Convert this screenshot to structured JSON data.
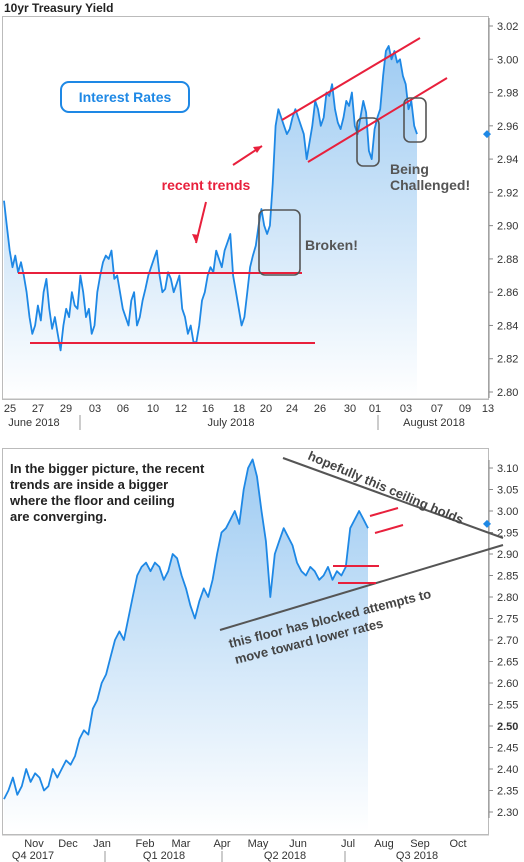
{
  "title": "10yr Treasury Yield",
  "colors": {
    "line": "#1e88e5",
    "fill_top": "#9ecbf2",
    "fill_bottom": "#ffffff",
    "trend_red": "#e8203c",
    "trend_gray": "#555555",
    "annotation_box": "#555555",
    "badge_text": "#1e88e5",
    "badge_border": "#1e88e5",
    "marker": "#1e88e5",
    "grid": "#dddddd",
    "axis_text": "#333333"
  },
  "chart_data": [
    {
      "type": "line",
      "ylim": [
        2.8,
        3.02
      ],
      "y_ticks": [
        "2.80",
        "2.82",
        "2.84",
        "2.86",
        "2.88",
        "2.90",
        "2.92",
        "2.94",
        "2.96",
        "2.98",
        "3.00",
        "3.02"
      ],
      "x_tick_labels": [
        "25",
        "27",
        "29",
        "03",
        "06",
        "10",
        "12",
        "16",
        "18",
        "20",
        "24",
        "26",
        "30",
        "01",
        "03",
        "07",
        "09",
        "13"
      ],
      "period_labels": [
        "June 2018",
        "July 2018",
        "August 2018"
      ],
      "last_value_marker": 2.955,
      "grid": false,
      "badge": "Interest Rates",
      "annotations": [
        "recent trends",
        "Broken!",
        "Being Challenged!"
      ],
      "approx_series": [
        [
          0,
          2.915
        ],
        [
          1,
          2.9
        ],
        [
          2,
          2.885
        ],
        [
          3,
          2.875
        ],
        [
          4,
          2.882
        ],
        [
          5,
          2.872
        ],
        [
          6,
          2.878
        ],
        [
          7,
          2.87
        ],
        [
          8,
          2.86
        ],
        [
          9,
          2.845
        ],
        [
          10,
          2.835
        ],
        [
          11,
          2.84
        ],
        [
          12,
          2.852
        ],
        [
          13,
          2.843
        ],
        [
          14,
          2.86
        ],
        [
          15,
          2.868
        ],
        [
          16,
          2.85
        ],
        [
          17,
          2.838
        ],
        [
          18,
          2.845
        ],
        [
          19,
          2.835
        ],
        [
          20,
          2.825
        ],
        [
          21,
          2.84
        ],
        [
          22,
          2.85
        ],
        [
          23,
          2.845
        ],
        [
          24,
          2.86
        ],
        [
          25,
          2.852
        ],
        [
          26,
          2.85
        ],
        [
          27,
          2.87
        ],
        [
          28,
          2.86
        ],
        [
          29,
          2.845
        ],
        [
          30,
          2.85
        ],
        [
          31,
          2.835
        ],
        [
          32,
          2.84
        ],
        [
          33,
          2.86
        ],
        [
          34,
          2.87
        ],
        [
          35,
          2.878
        ],
        [
          36,
          2.882
        ],
        [
          37,
          2.88
        ],
        [
          38,
          2.885
        ],
        [
          39,
          2.868
        ],
        [
          40,
          2.87
        ],
        [
          41,
          2.86
        ],
        [
          42,
          2.85
        ],
        [
          43,
          2.845
        ],
        [
          44,
          2.84
        ],
        [
          45,
          2.855
        ],
        [
          46,
          2.86
        ],
        [
          47,
          2.84
        ],
        [
          48,
          2.845
        ],
        [
          49,
          2.855
        ],
        [
          50,
          2.862
        ],
        [
          51,
          2.87
        ],
        [
          52,
          2.875
        ],
        [
          53,
          2.88
        ],
        [
          54,
          2.885
        ],
        [
          55,
          2.87
        ],
        [
          56,
          2.86
        ],
        [
          57,
          2.862
        ],
        [
          58,
          2.872
        ],
        [
          59,
          2.868
        ],
        [
          60,
          2.86
        ],
        [
          61,
          2.865
        ],
        [
          62,
          2.87
        ],
        [
          63,
          2.85
        ],
        [
          64,
          2.845
        ],
        [
          65,
          2.835
        ],
        [
          66,
          2.84
        ],
        [
          67,
          2.83
        ],
        [
          68,
          2.83
        ],
        [
          69,
          2.84
        ],
        [
          70,
          2.855
        ],
        [
          71,
          2.86
        ],
        [
          72,
          2.87
        ],
        [
          73,
          2.875
        ],
        [
          74,
          2.872
        ],
        [
          75,
          2.885
        ],
        [
          76,
          2.88
        ],
        [
          77,
          2.875
        ],
        [
          78,
          2.885
        ],
        [
          79,
          2.89
        ],
        [
          80,
          2.895
        ],
        [
          81,
          2.87
        ],
        [
          82,
          2.86
        ],
        [
          83,
          2.85
        ],
        [
          84,
          2.84
        ],
        [
          85,
          2.845
        ],
        [
          86,
          2.86
        ],
        [
          87,
          2.875
        ],
        [
          88,
          2.882
        ],
        [
          89,
          2.888
        ],
        [
          90,
          2.9
        ],
        [
          91,
          2.91
        ],
        [
          92,
          2.9
        ],
        [
          93,
          2.895
        ],
        [
          94,
          2.9
        ],
        [
          95,
          2.925
        ],
        [
          96,
          2.96
        ],
        [
          97,
          2.97
        ],
        [
          98,
          2.965
        ],
        [
          99,
          2.96
        ],
        [
          100,
          2.955
        ],
        [
          101,
          2.958
        ],
        [
          102,
          2.965
        ],
        [
          103,
          2.97
        ],
        [
          104,
          2.965
        ],
        [
          105,
          2.96
        ],
        [
          106,
          2.955
        ],
        [
          107,
          2.94
        ],
        [
          108,
          2.95
        ],
        [
          109,
          2.96
        ],
        [
          110,
          2.975
        ],
        [
          111,
          2.97
        ],
        [
          112,
          2.96
        ],
        [
          113,
          2.965
        ],
        [
          114,
          2.98
        ],
        [
          115,
          2.978
        ],
        [
          116,
          2.985
        ],
        [
          117,
          2.97
        ],
        [
          118,
          2.962
        ],
        [
          119,
          2.958
        ],
        [
          120,
          2.965
        ],
        [
          121,
          2.975
        ],
        [
          122,
          2.972
        ],
        [
          123,
          2.98
        ],
        [
          124,
          2.96
        ],
        [
          125,
          2.955
        ],
        [
          126,
          2.965
        ],
        [
          127,
          2.975
        ],
        [
          128,
          2.968
        ],
        [
          129,
          2.945
        ],
        [
          130,
          2.94
        ],
        [
          131,
          2.958
        ],
        [
          132,
          2.965
        ],
        [
          133,
          2.97
        ],
        [
          134,
          2.99
        ],
        [
          135,
          3.005
        ],
        [
          136,
          3.008
        ],
        [
          137,
          3.0
        ],
        [
          138,
          3.005
        ],
        [
          139,
          2.998
        ],
        [
          140,
          3.0
        ],
        [
          141,
          2.99
        ],
        [
          142,
          2.985
        ],
        [
          143,
          2.97
        ],
        [
          144,
          2.975
        ],
        [
          145,
          2.96
        ],
        [
          146,
          2.955
        ]
      ]
    },
    {
      "type": "line",
      "ylim": [
        2.3,
        3.1
      ],
      "y_ticks": [
        "2.30",
        "2.35",
        "2.40",
        "2.45",
        "2.50",
        "2.55",
        "2.60",
        "2.65",
        "2.70",
        "2.75",
        "2.80",
        "2.85",
        "2.90",
        "2.95",
        "3.00",
        "3.05",
        "3.10"
      ],
      "x_tick_labels": [
        "Nov",
        "Dec",
        "Jan",
        "Feb",
        "Mar",
        "Apr",
        "May",
        "Jun",
        "Jul",
        "Aug",
        "Sep",
        "Oct"
      ],
      "period_labels": [
        "Q4 2017",
        "Q1 2018",
        "Q2 2018",
        "Q3 2018"
      ],
      "last_value_marker": 2.97,
      "grid": false,
      "annotations": [
        "In the bigger picture, the recent trends are inside a bigger trend where the floor and ceiling are converging.",
        "hopefully this ceiling holds",
        "this floor has blocked attempts to move toward lower rates"
      ],
      "approx_series": [
        [
          0,
          2.33
        ],
        [
          1,
          2.35
        ],
        [
          2,
          2.38
        ],
        [
          3,
          2.34
        ],
        [
          4,
          2.36
        ],
        [
          5,
          2.4
        ],
        [
          6,
          2.37
        ],
        [
          7,
          2.39
        ],
        [
          8,
          2.38
        ],
        [
          9,
          2.35
        ],
        [
          10,
          2.36
        ],
        [
          11,
          2.4
        ],
        [
          12,
          2.38
        ],
        [
          13,
          2.4
        ],
        [
          14,
          2.42
        ],
        [
          15,
          2.41
        ],
        [
          16,
          2.43
        ],
        [
          17,
          2.47
        ],
        [
          18,
          2.49
        ],
        [
          19,
          2.48
        ],
        [
          20,
          2.54
        ],
        [
          21,
          2.56
        ],
        [
          22,
          2.6
        ],
        [
          23,
          2.62
        ],
        [
          24,
          2.66
        ],
        [
          25,
          2.7
        ],
        [
          26,
          2.72
        ],
        [
          27,
          2.7
        ],
        [
          28,
          2.75
        ],
        [
          29,
          2.8
        ],
        [
          30,
          2.85
        ],
        [
          31,
          2.87
        ],
        [
          32,
          2.88
        ],
        [
          33,
          2.86
        ],
        [
          34,
          2.88
        ],
        [
          35,
          2.87
        ],
        [
          36,
          2.84
        ],
        [
          37,
          2.86
        ],
        [
          38,
          2.9
        ],
        [
          39,
          2.89
        ],
        [
          40,
          2.85
        ],
        [
          41,
          2.82
        ],
        [
          42,
          2.78
        ],
        [
          43,
          2.75
        ],
        [
          44,
          2.79
        ],
        [
          45,
          2.82
        ],
        [
          46,
          2.8
        ],
        [
          47,
          2.84
        ],
        [
          48,
          2.9
        ],
        [
          49,
          2.95
        ],
        [
          50,
          2.96
        ],
        [
          51,
          2.98
        ],
        [
          52,
          3.0
        ],
        [
          53,
          2.97
        ],
        [
          54,
          3.05
        ],
        [
          55,
          3.1
        ],
        [
          56,
          3.12
        ],
        [
          57,
          3.08
        ],
        [
          58,
          3.0
        ],
        [
          59,
          2.93
        ],
        [
          60,
          2.8
        ],
        [
          61,
          2.9
        ],
        [
          62,
          2.93
        ],
        [
          63,
          2.96
        ],
        [
          64,
          2.94
        ],
        [
          65,
          2.92
        ],
        [
          66,
          2.88
        ],
        [
          67,
          2.86
        ],
        [
          68,
          2.85
        ],
        [
          69,
          2.87
        ],
        [
          70,
          2.86
        ],
        [
          71,
          2.84
        ],
        [
          72,
          2.85
        ],
        [
          73,
          2.87
        ],
        [
          74,
          2.84
        ],
        [
          75,
          2.86
        ],
        [
          76,
          2.85
        ],
        [
          77,
          2.87
        ],
        [
          78,
          2.96
        ],
        [
          79,
          2.98
        ],
        [
          80,
          3.0
        ],
        [
          81,
          2.98
        ],
        [
          82,
          2.96
        ]
      ]
    }
  ]
}
